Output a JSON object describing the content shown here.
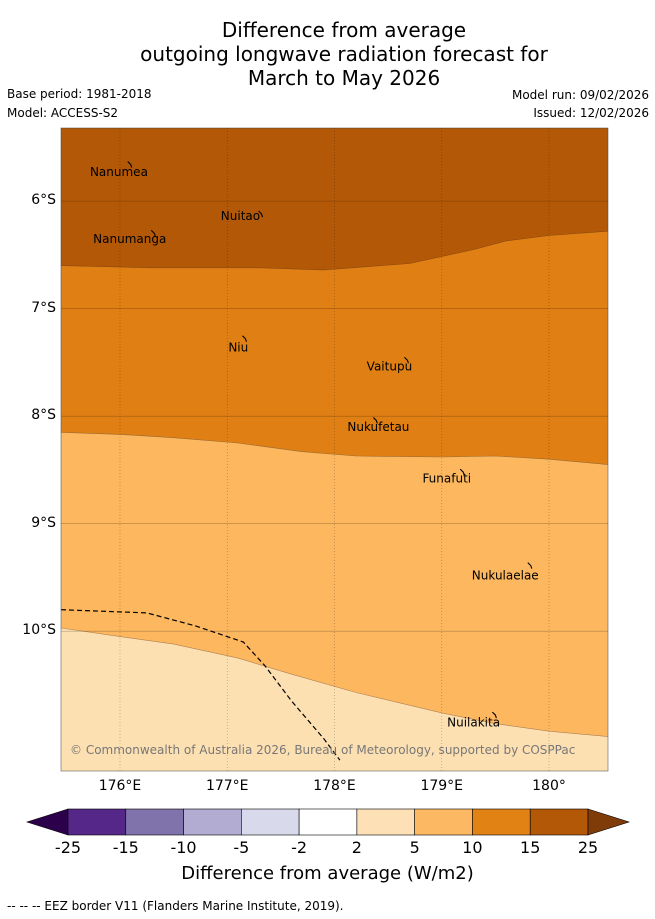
{
  "title_lines": [
    "Difference from average",
    "outgoing longwave radiation forecast for",
    "March to May 2026"
  ],
  "meta": {
    "base_period": "Base period: 1981-2018",
    "model": "Model: ACCESS-S2",
    "model_run": "Model run: 09/02/2026",
    "issued": "Issued: 12/02/2026"
  },
  "map": {
    "lon_range": [
      175.45,
      180.55
    ],
    "lat_range": [
      -11.3,
      -5.32
    ],
    "x_ticks": [
      {
        "value": 176,
        "label": "176°E"
      },
      {
        "value": 177,
        "label": "177°E"
      },
      {
        "value": 178,
        "label": "178°E"
      },
      {
        "value": 179,
        "label": "179°E"
      },
      {
        "value": 180,
        "label": "180°"
      }
    ],
    "y_ticks": [
      {
        "value": -6,
        "label": "6°S"
      },
      {
        "value": -7,
        "label": "7°S"
      },
      {
        "value": -8,
        "label": "8°S"
      },
      {
        "value": -9,
        "label": "9°S"
      },
      {
        "value": -10,
        "label": "10°S"
      }
    ],
    "colors": {
      "c10_15": "#e07f14",
      "c15_25": "#b35806",
      "c5_10": "#fcb75f",
      "c2_5": "#fde0b2"
    },
    "boundaries": {
      "b15": [
        [
          175.45,
          -6.6
        ],
        [
          176.3,
          -6.62
        ],
        [
          177.3,
          -6.62
        ],
        [
          177.9,
          -6.64
        ],
        [
          178.7,
          -6.58
        ],
        [
          179.3,
          -6.45
        ],
        [
          179.6,
          -6.37
        ],
        [
          180.0,
          -6.32
        ],
        [
          180.55,
          -6.28
        ]
      ],
      "b10": [
        [
          175.45,
          -8.15
        ],
        [
          176.0,
          -8.17
        ],
        [
          176.5,
          -8.2
        ],
        [
          177.1,
          -8.25
        ],
        [
          177.7,
          -8.33
        ],
        [
          178.2,
          -8.37
        ],
        [
          179.0,
          -8.38
        ],
        [
          179.5,
          -8.37
        ],
        [
          180.0,
          -8.4
        ],
        [
          180.55,
          -8.45
        ]
      ],
      "b5": [
        [
          175.45,
          -9.97
        ],
        [
          176.0,
          -10.05
        ],
        [
          176.5,
          -10.12
        ],
        [
          177.1,
          -10.25
        ],
        [
          177.6,
          -10.4
        ],
        [
          178.2,
          -10.57
        ],
        [
          179.0,
          -10.76
        ],
        [
          179.5,
          -10.86
        ],
        [
          180.0,
          -10.93
        ],
        [
          180.55,
          -10.98
        ]
      ]
    },
    "eez": [
      [
        175.45,
        -9.8
      ],
      [
        176.25,
        -9.83
      ],
      [
        176.7,
        -9.95
      ],
      [
        177.15,
        -10.1
      ],
      [
        177.35,
        -10.32
      ],
      [
        177.6,
        -10.65
      ],
      [
        177.9,
        -11.0
      ],
      [
        178.05,
        -11.2
      ]
    ],
    "places": [
      {
        "name": "Nanumea",
        "lon": 175.72,
        "lat": -5.73,
        "isl_lon": 176.1,
        "isl_lat": -5.66
      },
      {
        "name": "Nuitao",
        "lon": 176.94,
        "lat": -6.14,
        "isl_lon": 177.32,
        "isl_lat": -6.12
      },
      {
        "name": "Nanumanga",
        "lon": 175.75,
        "lat": -6.35,
        "isl_lon": 176.32,
        "isl_lat": -6.3
      },
      {
        "name": "Niu",
        "lon": 177.01,
        "lat": -7.36,
        "isl_lon": 177.17,
        "isl_lat": -7.28
      },
      {
        "name": "Vaitupu",
        "lon": 178.3,
        "lat": -7.54,
        "isl_lon": 178.68,
        "isl_lat": -7.48
      },
      {
        "name": "Nukufetau",
        "lon": 178.12,
        "lat": -8.1,
        "isl_lon": 178.39,
        "isl_lat": -8.04
      },
      {
        "name": "Funafuti",
        "lon": 178.82,
        "lat": -8.58,
        "isl_lon": 179.2,
        "isl_lat": -8.52
      },
      {
        "name": "Nukulaelae",
        "lon": 179.28,
        "lat": -9.48,
        "isl_lon": 179.83,
        "isl_lat": -9.39
      },
      {
        "name": "Nuilakita",
        "lon": 179.05,
        "lat": -10.85,
        "isl_lon": 179.5,
        "isl_lat": -10.78
      }
    ],
    "copyright": "© Commonwealth of Australia 2026, Bureau of Meteorology, supported by COSPPac"
  },
  "colorbar": {
    "colors": [
      "#542788",
      "#8073ac",
      "#b2abd2",
      "#d8daeb",
      "#ffffff",
      "#fee0b6",
      "#fdb863",
      "#e08214",
      "#b35806"
    ],
    "low_color": "#2d004b",
    "high_color": "#7f3b08",
    "tick_labels": [
      "-25",
      "-15",
      "-10",
      "-5",
      "-2",
      "2",
      "5",
      "10",
      "15",
      "25"
    ],
    "label": "Difference from average (W/m2)"
  },
  "footer": "-- -- -- EEZ border V11 (Flanders Marine Institute, 2019)."
}
